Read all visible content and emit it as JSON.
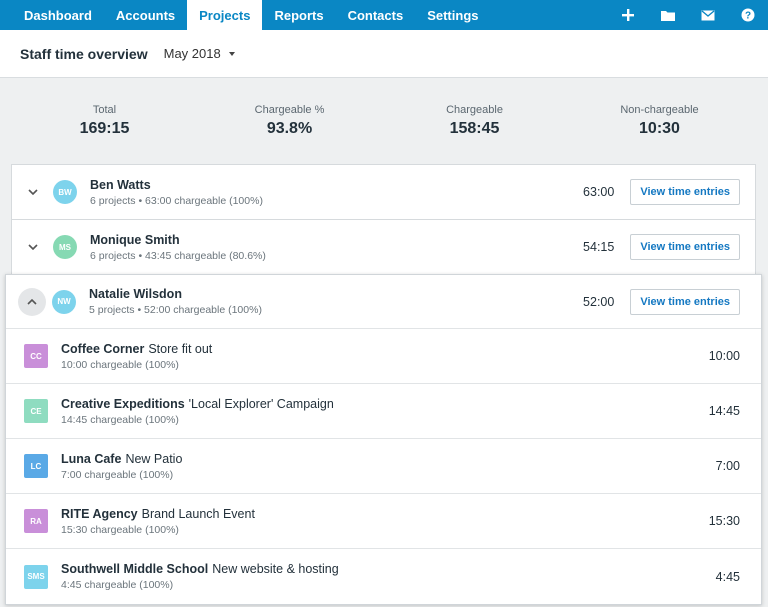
{
  "nav": {
    "tabs": [
      {
        "label": "Dashboard"
      },
      {
        "label": "Accounts"
      },
      {
        "label": "Projects",
        "active": true
      },
      {
        "label": "Reports"
      },
      {
        "label": "Contacts"
      },
      {
        "label": "Settings"
      }
    ],
    "icons": [
      "plus-icon",
      "folder-icon",
      "mail-icon",
      "help-icon"
    ],
    "color": "#0a87c4"
  },
  "header": {
    "title": "Staff time overview",
    "month": "May 2018"
  },
  "summary": {
    "total_label": "Total",
    "total_value": "169:15",
    "chargeable_pct_label": "Chargeable %",
    "chargeable_pct_value": "93.8%",
    "chargeable_label": "Chargeable",
    "chargeable_value": "158:45",
    "nonchargeable_label": "Non-chargeable",
    "nonchargeable_value": "10:30"
  },
  "button_label": "View time entries",
  "staff": [
    {
      "initials": "BW",
      "name": "Ben Watts",
      "detail": "6 projects • 63:00 chargeable (100%)",
      "total": "63:00",
      "color": "#7dd3ec"
    },
    {
      "initials": "MS",
      "name": "Monique Smith",
      "detail": "6 projects • 43:45 chargeable (80.6%)",
      "total": "54:15",
      "color": "#86d9b3"
    },
    {
      "initials": "NW",
      "name": "Natalie Wilsdon",
      "detail": "5 projects • 52:00 chargeable (100%)",
      "total": "52:00",
      "color": "#7dd3ec"
    }
  ],
  "projects": [
    {
      "badge": "CC",
      "client": "Coffee Corner",
      "project": "Store fit out",
      "detail": "10:00 chargeable (100%)",
      "total": "10:00",
      "color": "#c98fd9"
    },
    {
      "badge": "CE",
      "client": "Creative Expeditions",
      "project": "'Local Explorer' Campaign",
      "detail": "14:45 chargeable (100%)",
      "total": "14:45",
      "color": "#8fdcc0"
    },
    {
      "badge": "LC",
      "client": "Luna Cafe",
      "project": "New Patio",
      "detail": "7:00 chargeable (100%)",
      "total": "7:00",
      "color": "#5aa9e6"
    },
    {
      "badge": "RA",
      "client": "RITE Agency",
      "project": "Brand Launch Event",
      "detail": "15:30 chargeable (100%)",
      "total": "15:30",
      "color": "#c98fd9"
    },
    {
      "badge": "SMS",
      "client": "Southwell Middle School",
      "project": "New website & hosting",
      "detail": "4:45 chargeable (100%)",
      "total": "4:45",
      "color": "#7dd3ec"
    }
  ]
}
